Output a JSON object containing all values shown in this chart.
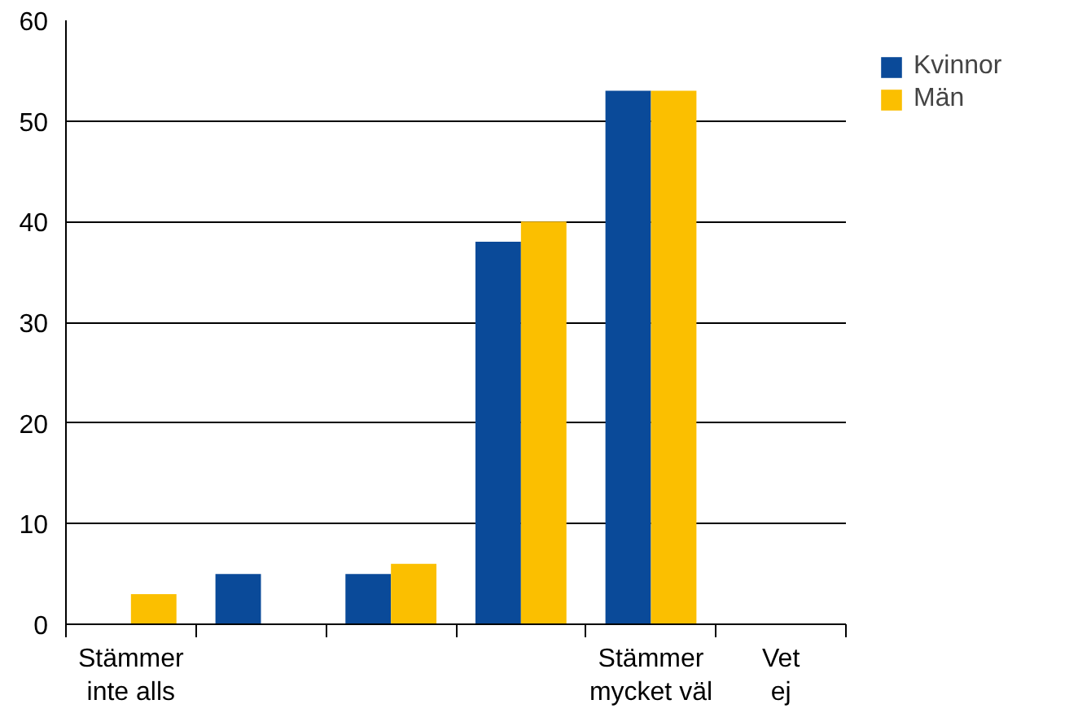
{
  "chart_data": {
    "type": "bar",
    "categories": [
      "Stämmer\ninte alls",
      null,
      null,
      null,
      "Stämmer\nmycket väl",
      "Vet\nej"
    ],
    "series": [
      {
        "name": "Kvinnor",
        "color": "#0a4a99",
        "values": [
          0,
          5,
          5,
          38,
          53,
          0
        ]
      },
      {
        "name": "Män",
        "color": "#fbbf00",
        "values": [
          3,
          0,
          6,
          40,
          53,
          0
        ]
      }
    ],
    "ylim": [
      0,
      60
    ],
    "yticks": [
      0,
      10,
      20,
      30,
      40,
      50,
      60
    ],
    "grid": "y",
    "legend": "top right"
  }
}
